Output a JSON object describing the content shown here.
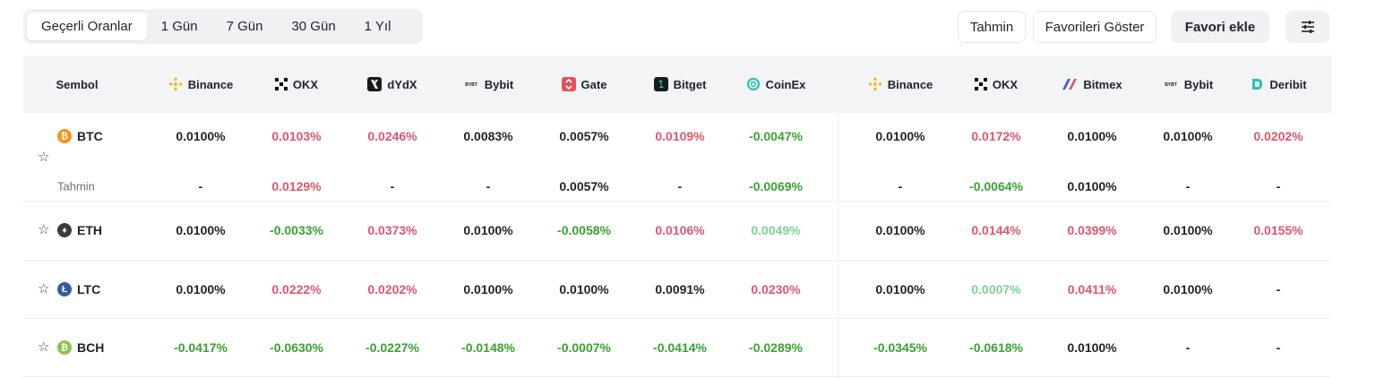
{
  "tabs": [
    {
      "label": "Geçerli Oranlar",
      "active": true
    },
    {
      "label": "1 Gün",
      "active": false
    },
    {
      "label": "7 Gün",
      "active": false
    },
    {
      "label": "30 Gün",
      "active": false
    },
    {
      "label": "1 Yıl",
      "active": false
    }
  ],
  "actions": {
    "predict_label": "Tahmin",
    "show_favorites_label": "Favorileri Göster",
    "add_favorite_label": "Favori ekle",
    "settings_icon": "sliders-icon"
  },
  "table": {
    "symbol_header": "Sembol",
    "exchanges": [
      {
        "name": "Binance",
        "icon": "binance-icon",
        "color": "#F0B90B"
      },
      {
        "name": "OKX",
        "icon": "okx-icon",
        "color": "#000000"
      },
      {
        "name": "dYdX",
        "icon": "dydx-icon",
        "color": "#1a1a1a"
      },
      {
        "name": "Bybit",
        "icon": "bybit-icon",
        "color": "#1a1a1a"
      },
      {
        "name": "Gate",
        "icon": "gate-icon",
        "color": "#e8505b"
      },
      {
        "name": "Bitget",
        "icon": "bitget-icon",
        "color": "#1a1a1a"
      },
      {
        "name": "CoinEx",
        "icon": "coinex-icon",
        "color": "#2cc2b5"
      },
      {
        "name": "Binance",
        "icon": "binance-icon",
        "color": "#F0B90B"
      },
      {
        "name": "OKX",
        "icon": "okx-icon",
        "color": "#000000"
      },
      {
        "name": "Bitmex",
        "icon": "bitmex-icon",
        "color": "#e0566b"
      },
      {
        "name": "Bybit",
        "icon": "bybit-icon",
        "color": "#1a1a1a"
      },
      {
        "name": "Deribit",
        "icon": "deribit-icon",
        "color": "#2cc2b5"
      }
    ],
    "rows": [
      {
        "symbol": "BTC",
        "coin_color": "#f7931a",
        "coin_glyph": "₿",
        "values": [
          {
            "v": "0.0100%",
            "s": "n"
          },
          {
            "v": "0.0103%",
            "s": "p"
          },
          {
            "v": "0.0246%",
            "s": "p"
          },
          {
            "v": "0.0083%",
            "s": "n"
          },
          {
            "v": "0.0057%",
            "s": "n"
          },
          {
            "v": "0.0109%",
            "s": "p"
          },
          {
            "v": "-0.0047%",
            "s": "g"
          },
          {
            "v": "0.0100%",
            "s": "n"
          },
          {
            "v": "0.0172%",
            "s": "p"
          },
          {
            "v": "0.0100%",
            "s": "n"
          },
          {
            "v": "0.0100%",
            "s": "n"
          },
          {
            "v": "0.0202%",
            "s": "p"
          }
        ],
        "prediction_label": "Tahmin",
        "prediction": [
          {
            "v": "-",
            "s": "n"
          },
          {
            "v": "0.0129%",
            "s": "p"
          },
          {
            "v": "-",
            "s": "n"
          },
          {
            "v": "-",
            "s": "n"
          },
          {
            "v": "0.0057%",
            "s": "n"
          },
          {
            "v": "-",
            "s": "n"
          },
          {
            "v": "-0.0069%",
            "s": "g"
          },
          {
            "v": "-",
            "s": "n"
          },
          {
            "v": "-0.0064%",
            "s": "g"
          },
          {
            "v": "0.0100%",
            "s": "n"
          },
          {
            "v": "-",
            "s": "n"
          },
          {
            "v": "-",
            "s": "n"
          }
        ]
      },
      {
        "symbol": "ETH",
        "coin_color": "#3c3c3d",
        "coin_glyph": "♦",
        "values": [
          {
            "v": "0.0100%",
            "s": "n"
          },
          {
            "v": "-0.0033%",
            "s": "g"
          },
          {
            "v": "0.0373%",
            "s": "p"
          },
          {
            "v": "0.0100%",
            "s": "n"
          },
          {
            "v": "-0.0058%",
            "s": "g"
          },
          {
            "v": "0.0106%",
            "s": "p"
          },
          {
            "v": "0.0049%",
            "s": "l"
          },
          {
            "v": "0.0100%",
            "s": "n"
          },
          {
            "v": "0.0144%",
            "s": "p"
          },
          {
            "v": "0.0399%",
            "s": "p"
          },
          {
            "v": "0.0100%",
            "s": "n"
          },
          {
            "v": "0.0155%",
            "s": "p"
          }
        ]
      },
      {
        "symbol": "LTC",
        "coin_color": "#345d9d",
        "coin_glyph": "Ł",
        "values": [
          {
            "v": "0.0100%",
            "s": "n"
          },
          {
            "v": "0.0222%",
            "s": "p"
          },
          {
            "v": "0.0202%",
            "s": "p"
          },
          {
            "v": "0.0100%",
            "s": "n"
          },
          {
            "v": "0.0100%",
            "s": "n"
          },
          {
            "v": "0.0091%",
            "s": "n"
          },
          {
            "v": "0.0230%",
            "s": "p"
          },
          {
            "v": "0.0100%",
            "s": "n"
          },
          {
            "v": "0.0007%",
            "s": "l"
          },
          {
            "v": "0.0411%",
            "s": "p"
          },
          {
            "v": "0.0100%",
            "s": "n"
          },
          {
            "v": "-",
            "s": "n"
          }
        ]
      },
      {
        "symbol": "BCH",
        "coin_color": "#8dc351",
        "coin_glyph": "₿",
        "values": [
          {
            "v": "-0.0417%",
            "s": "g"
          },
          {
            "v": "-0.0630%",
            "s": "g"
          },
          {
            "v": "-0.0227%",
            "s": "g"
          },
          {
            "v": "-0.0148%",
            "s": "g"
          },
          {
            "v": "-0.0007%",
            "s": "g"
          },
          {
            "v": "-0.0414%",
            "s": "g"
          },
          {
            "v": "-0.0289%",
            "s": "g"
          },
          {
            "v": "-0.0345%",
            "s": "g"
          },
          {
            "v": "-0.0618%",
            "s": "g"
          },
          {
            "v": "0.0100%",
            "s": "n"
          },
          {
            "v": "-",
            "s": "n"
          },
          {
            "v": "-",
            "s": "n"
          }
        ]
      }
    ]
  }
}
